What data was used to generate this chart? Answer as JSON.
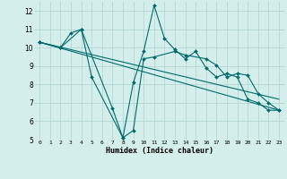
{
  "xlabel": "Humidex (Indice chaleur)",
  "background_color": "#d4eeeb",
  "grid_color": "#aed4d0",
  "line_color": "#006b6b",
  "xlim": [
    -0.5,
    23.5
  ],
  "ylim": [
    5,
    12.5
  ],
  "yticks": [
    5,
    6,
    7,
    8,
    9,
    10,
    11,
    12
  ],
  "xticks": [
    0,
    1,
    2,
    3,
    4,
    5,
    6,
    7,
    8,
    9,
    10,
    11,
    12,
    13,
    14,
    15,
    16,
    17,
    18,
    19,
    20,
    21,
    22,
    23
  ],
  "series": [
    {
      "x": [
        0,
        2,
        3,
        4,
        5,
        8,
        9,
        10,
        11,
        12,
        13,
        14,
        15,
        16,
        17,
        18,
        19,
        20,
        21,
        22,
        23
      ],
      "y": [
        10.3,
        10.0,
        10.8,
        11.0,
        8.4,
        5.1,
        8.1,
        9.8,
        12.3,
        10.5,
        9.9,
        9.4,
        9.8,
        8.9,
        8.4,
        8.6,
        8.4,
        7.2,
        7.0,
        6.6,
        6.6
      ]
    },
    {
      "x": [
        0,
        2,
        4,
        7,
        8,
        9,
        10,
        11,
        13,
        14,
        16,
        17,
        18,
        19,
        20,
        21,
        22,
        23
      ],
      "y": [
        10.3,
        10.0,
        11.0,
        6.7,
        5.1,
        5.5,
        9.4,
        9.5,
        9.8,
        9.6,
        9.4,
        9.05,
        8.4,
        8.6,
        8.5,
        7.5,
        7.0,
        6.6
      ]
    },
    {
      "x": [
        0,
        23
      ],
      "y": [
        10.3,
        7.2
      ]
    },
    {
      "x": [
        0,
        23
      ],
      "y": [
        10.3,
        6.6
      ]
    }
  ]
}
